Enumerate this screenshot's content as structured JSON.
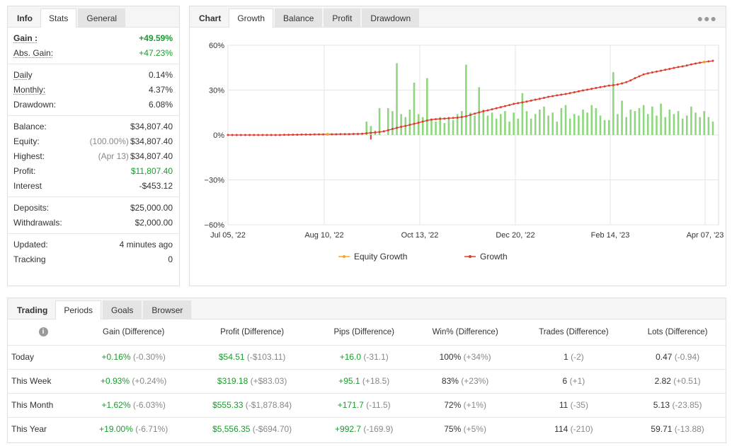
{
  "stats_panel": {
    "tabs": [
      "Info",
      "Stats",
      "General"
    ],
    "groups": [
      [
        {
          "label": "Gain :",
          "value": "+49.59%",
          "style": "bold",
          "vstyle": "green bold"
        },
        {
          "label": "Abs. Gain:",
          "value": "+47.23%",
          "style": "ul",
          "vstyle": "green"
        }
      ],
      [
        {
          "label": "Daily",
          "value": "0.14%",
          "style": "ul"
        },
        {
          "label": "Monthly:",
          "value": "4.37%",
          "style": "ul"
        },
        {
          "label": "Drawdown:",
          "value": "6.08%",
          "style": ""
        }
      ],
      [
        {
          "label": "Balance:",
          "value": "$34,807.40"
        },
        {
          "label": "Equity:",
          "prefix": "(100.00%)",
          "value": "$34,807.40"
        },
        {
          "label": "Highest:",
          "prefix": "(Apr 13)",
          "value": "$34,807.40"
        },
        {
          "label": "Profit:",
          "value": "$11,807.40",
          "vstyle": "green"
        },
        {
          "label": "Interest",
          "value": "-$453.12"
        }
      ],
      [
        {
          "label": "Deposits:",
          "value": "$25,000.00"
        },
        {
          "label": "Withdrawals:",
          "value": "$2,000.00"
        }
      ],
      [
        {
          "label": "Updated:",
          "value": "4 minutes ago"
        },
        {
          "label": "Tracking",
          "value": "0"
        }
      ]
    ]
  },
  "chart_panel": {
    "tabs": [
      "Chart",
      "Growth",
      "Balance",
      "Profit",
      "Drawdown"
    ],
    "menu_icon": "more-dots-icon"
  },
  "chart_data": {
    "type": "line",
    "y_ticks": [
      "60%",
      "30%",
      "0%",
      "−30%",
      "−60%"
    ],
    "ylim": [
      -60,
      60
    ],
    "x_ticks": [
      "Jul 05, '22",
      "Aug 10, '22",
      "Oct 13, '22",
      "Dec 20, '22",
      "Feb 14, '23",
      "Apr 07, '23"
    ],
    "legend": [
      {
        "name": "Equity Growth",
        "color": "#f5a623"
      },
      {
        "name": "Growth",
        "color": "#e03a2b"
      }
    ],
    "bar_color": "#8fd77f",
    "growth_values": [
      0,
      0,
      0,
      0,
      0,
      0,
      0,
      0,
      0,
      0,
      0,
      0,
      0,
      0.1,
      0.1,
      0.2,
      0.2,
      0.3,
      0.3,
      0.3,
      0.4,
      0.4,
      0.4,
      0.5,
      0.5,
      0.5,
      0.6,
      0.6,
      0.6,
      0.7,
      0.7,
      0.8,
      1.2,
      1.5,
      1.7,
      2.0,
      2.5,
      3.2,
      4.0,
      4.8,
      5.5,
      6.1,
      6.8,
      7.5,
      8.2,
      9.0,
      9.7,
      10.3,
      10.6,
      10.8,
      11.0,
      11.2,
      11.4,
      11.6,
      12.0,
      12.5,
      13.4,
      14.3,
      15.1,
      15.9,
      16.5,
      17.2,
      17.9,
      18.6,
      19.3,
      20.0,
      20.8,
      21.3,
      21.8,
      22.4,
      23.0,
      23.6,
      24.2,
      24.8,
      25.5,
      26.0,
      26.5,
      27.0,
      27.4,
      28.0,
      28.6,
      29.2,
      29.8,
      30.3,
      30.9,
      31.4,
      32.0,
      32.5,
      33.0,
      33.3,
      33.8,
      34.5,
      35.3,
      36.5,
      38.0,
      39.2,
      40.5,
      41.2,
      41.8,
      42.4,
      43.0,
      43.6,
      44.2,
      44.8,
      45.4,
      45.9,
      46.5,
      47.2,
      47.8,
      48.3,
      48.8,
      49.2,
      49.6
    ],
    "bar_values": [
      0,
      0,
      0,
      0,
      0,
      0,
      0,
      0,
      0,
      0,
      0,
      0,
      0,
      0,
      0,
      0,
      0,
      0,
      0,
      0,
      0,
      0,
      0,
      0,
      0,
      0,
      0,
      0,
      0,
      0,
      0,
      0,
      9,
      6,
      3,
      18,
      0,
      18,
      16,
      48,
      14,
      12,
      17,
      35,
      14,
      12,
      38,
      11,
      9,
      12,
      8,
      12,
      10,
      14,
      16,
      47,
      15,
      13,
      32,
      17,
      13,
      15,
      11,
      14,
      16,
      9,
      15,
      11,
      28,
      16,
      11,
      14,
      17,
      19,
      13,
      15,
      9,
      18,
      20,
      11,
      14,
      13,
      17,
      15,
      20,
      18,
      13,
      10,
      10,
      42,
      14,
      23,
      12,
      17,
      16,
      18,
      20,
      14,
      19,
      13,
      21,
      12,
      17,
      14,
      16,
      11,
      13,
      19,
      15,
      12,
      16,
      12,
      9
    ],
    "bar_negative_index": 33,
    "bar_negative_value": -3
  },
  "periods_panel": {
    "tabs": [
      "Trading",
      "Periods",
      "Goals",
      "Browser"
    ],
    "info_icon": "info-icon",
    "columns": [
      "Gain (Difference)",
      "Profit (Difference)",
      "Pips (Difference)",
      "Win% (Difference)",
      "Trades (Difference)",
      "Lots (Difference)"
    ],
    "rows": [
      {
        "label": "Today",
        "cells": [
          [
            "+0.16%",
            "(-0.30%)",
            "green"
          ],
          [
            "$54.51",
            "(-$103.11)",
            "green"
          ],
          [
            "+16.0",
            "(-31.1)",
            "green"
          ],
          [
            "100%",
            "(+34%)",
            ""
          ],
          [
            "1",
            "(-2)",
            ""
          ],
          [
            "0.47",
            "(-0.94)",
            ""
          ]
        ]
      },
      {
        "label": "This Week",
        "cells": [
          [
            "+0.93%",
            "(+0.24%)",
            "green"
          ],
          [
            "$319.18",
            "(+$83.03)",
            "green"
          ],
          [
            "+95.1",
            "(+18.5)",
            "green"
          ],
          [
            "83%",
            "(+23%)",
            ""
          ],
          [
            "6",
            "(+1)",
            ""
          ],
          [
            "2.82",
            "(+0.51)",
            ""
          ]
        ]
      },
      {
        "label": "This Month",
        "cells": [
          [
            "+1.62%",
            "(-6.03%)",
            "green"
          ],
          [
            "$555.33",
            "(-$1,878.84)",
            "green"
          ],
          [
            "+171.7",
            "(-11.5)",
            "green"
          ],
          [
            "72%",
            "(+1%)",
            ""
          ],
          [
            "11",
            "(-35)",
            ""
          ],
          [
            "5.13",
            "(-23.85)",
            ""
          ]
        ]
      },
      {
        "label": "This Year",
        "cells": [
          [
            "+19.00%",
            "(-6.71%)",
            "green"
          ],
          [
            "$5,556.35",
            "(-$694.70)",
            "green"
          ],
          [
            "+992.7",
            "(-169.9)",
            "green"
          ],
          [
            "75%",
            "(+5%)",
            ""
          ],
          [
            "114",
            "(-210)",
            ""
          ],
          [
            "59.71",
            "(-13.88)",
            ""
          ]
        ]
      }
    ]
  }
}
